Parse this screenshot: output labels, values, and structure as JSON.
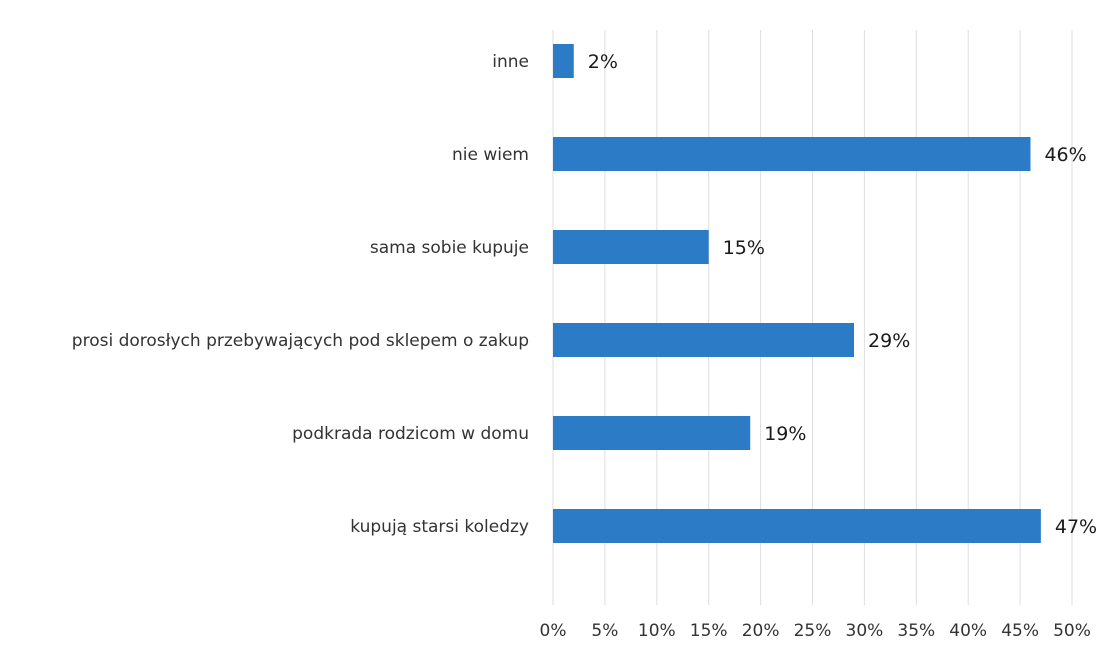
{
  "chart_data": {
    "type": "bar",
    "orientation": "horizontal",
    "title": "",
    "xlabel": "",
    "ylabel": "",
    "categories": [
      "inne",
      "nie wiem",
      "sama sobie kupuje",
      "prosi dorosłych przebywających pod sklepem o zakup",
      "podkrada rodzicom w domu",
      "kupują starsi koledzy"
    ],
    "values": [
      2,
      46,
      15,
      29,
      19,
      47
    ],
    "value_labels": [
      "2%",
      "46%",
      "15%",
      "29%",
      "19%",
      "47%"
    ],
    "xlim": [
      0,
      50
    ],
    "x_ticks": [
      0,
      5,
      10,
      15,
      20,
      25,
      30,
      35,
      40,
      45,
      50
    ],
    "x_tick_labels": [
      "0%",
      "5%",
      "10%",
      "15%",
      "20%",
      "25%",
      "30%",
      "35%",
      "40%",
      "45%",
      "50%"
    ],
    "grid": "vertical",
    "legend": "none",
    "bar_color": "#2b7bc6",
    "grid_color": "#dedede",
    "text_color": "#333333"
  }
}
